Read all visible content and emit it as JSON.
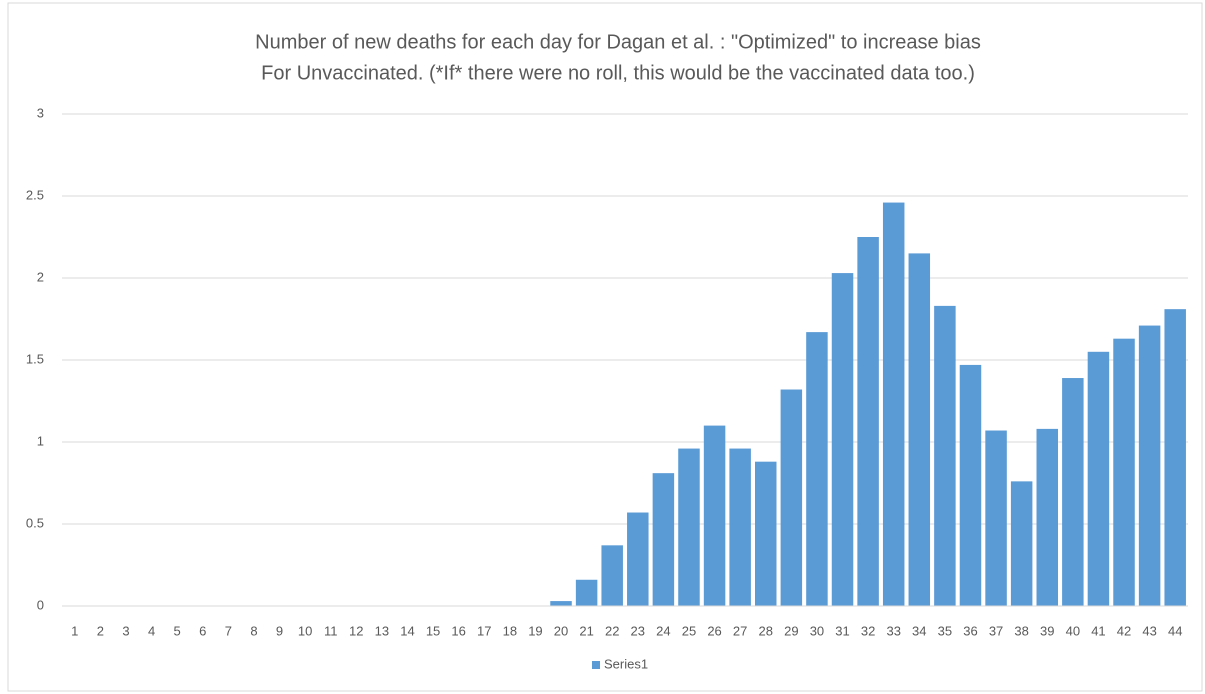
{
  "chart_data": {
    "type": "bar",
    "title": [
      "Number of new deaths for each day for Dagan et al. : \"Optimized\" to increase bias",
      "For Unvaccinated. (*If* there were no roll, this would be the vaccinated data too.)"
    ],
    "categories": [
      "1",
      "2",
      "3",
      "4",
      "5",
      "6",
      "7",
      "8",
      "9",
      "10",
      "11",
      "12",
      "13",
      "14",
      "15",
      "16",
      "17",
      "18",
      "19",
      "20",
      "21",
      "22",
      "23",
      "24",
      "25",
      "26",
      "27",
      "28",
      "29",
      "30",
      "31",
      "32",
      "33",
      "34",
      "35",
      "36",
      "37",
      "38",
      "39",
      "40",
      "41",
      "42",
      "43",
      "44"
    ],
    "series": [
      {
        "name": "Series1",
        "color": "#5b9bd5",
        "values": [
          0,
          0,
          0,
          0,
          0,
          0,
          0,
          0,
          0,
          0,
          0,
          0,
          0,
          0,
          0,
          0,
          0,
          0,
          0,
          0.03,
          0.16,
          0.37,
          0.57,
          0.81,
          0.96,
          1.1,
          0.96,
          0.88,
          1.32,
          1.67,
          2.03,
          2.25,
          2.46,
          2.15,
          1.83,
          1.47,
          1.07,
          0.76,
          1.08,
          1.39,
          1.55,
          1.63,
          1.71,
          1.81
        ]
      }
    ],
    "ylim": [
      0,
      3
    ],
    "yticks": [
      0,
      0.5,
      1,
      1.5,
      2,
      2.5,
      3
    ],
    "grid": true,
    "legend": "bottom"
  }
}
